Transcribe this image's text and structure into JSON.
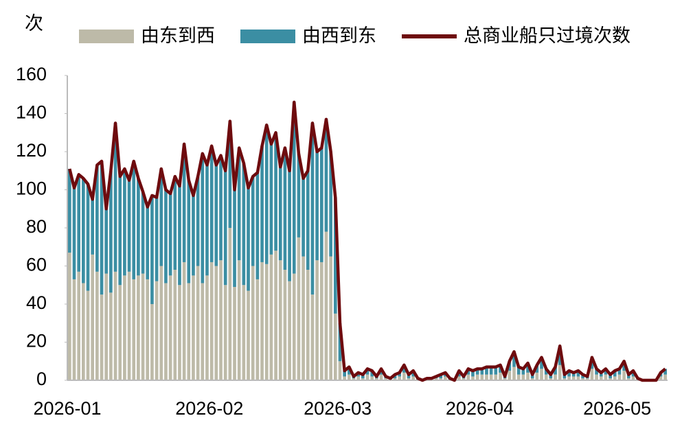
{
  "chart_data": {
    "type": "bar",
    "stacked": true,
    "y_label": "次",
    "categories": [
      "2026-01",
      null,
      null,
      null,
      null,
      null,
      null,
      null,
      null,
      null,
      null,
      null,
      null,
      null,
      null,
      null,
      null,
      null,
      null,
      null,
      null,
      null,
      null,
      null,
      null,
      null,
      null,
      null,
      null,
      null,
      null,
      "2026-02",
      null,
      null,
      null,
      null,
      null,
      null,
      null,
      null,
      null,
      null,
      null,
      null,
      null,
      null,
      null,
      null,
      null,
      null,
      null,
      null,
      null,
      null,
      null,
      null,
      null,
      null,
      null,
      "2026-03",
      null,
      null,
      null,
      null,
      null,
      null,
      null,
      null,
      null,
      null,
      null,
      null,
      null,
      null,
      null,
      null,
      null,
      null,
      null,
      null,
      null,
      null,
      null,
      null,
      null,
      null,
      null,
      null,
      null,
      null,
      "2026-04",
      null,
      null,
      null,
      null,
      null,
      null,
      null,
      null,
      null,
      null,
      null,
      null,
      null,
      null,
      null,
      null,
      null,
      null,
      null,
      null,
      null,
      null,
      null,
      null,
      null,
      null,
      null,
      null,
      null,
      "2026-05",
      null,
      null,
      null,
      null,
      null,
      null,
      null,
      null,
      null,
      null
    ],
    "series": [
      {
        "name": "由东到西",
        "color": "#bdbaa8",
        "values": [
          67,
          53,
          57,
          51,
          47,
          66,
          57,
          45,
          56,
          46,
          57,
          50,
          55,
          57,
          53,
          55,
          56,
          53,
          40,
          52,
          60,
          51,
          55,
          58,
          50,
          62,
          51,
          55,
          60,
          51,
          55,
          62,
          60,
          63,
          50,
          80,
          49,
          63,
          50,
          47,
          60,
          53,
          62,
          61,
          66,
          68,
          63,
          58,
          52,
          56,
          75,
          65,
          58,
          45,
          63,
          62,
          78,
          65,
          35,
          10,
          2,
          3,
          1,
          2,
          1,
          3,
          2,
          1,
          3,
          1,
          0,
          1,
          2,
          4,
          1,
          2,
          0,
          0,
          0,
          1,
          1,
          1,
          2,
          0,
          0,
          2,
          1,
          3,
          2,
          3,
          3,
          3,
          3,
          3,
          4,
          1,
          5,
          7,
          3,
          3,
          4,
          1,
          4,
          6,
          3,
          1,
          3,
          8,
          1,
          2,
          2,
          2,
          1,
          1,
          6,
          3,
          2,
          3,
          1,
          2,
          3,
          5,
          1,
          2,
          0,
          0,
          0,
          0,
          0,
          2,
          3
        ]
      },
      {
        "name": "由西到东",
        "color": "#3b8ea3",
        "values": [
          44,
          48,
          51,
          55,
          56,
          29,
          56,
          70,
          34,
          64,
          78,
          57,
          56,
          48,
          62,
          51,
          43,
          38,
          57,
          44,
          51,
          49,
          43,
          49,
          52,
          62,
          54,
          42,
          47,
          68,
          58,
          61,
          53,
          55,
          60,
          56,
          51,
          59,
          64,
          54,
          47,
          56,
          61,
          73,
          58,
          62,
          49,
          64,
          58,
          90,
          44,
          41,
          52,
          90,
          57,
          60,
          59,
          55,
          61,
          20,
          3,
          4,
          1,
          2,
          2,
          3,
          3,
          1,
          3,
          1,
          1,
          2,
          2,
          4,
          2,
          3,
          1,
          0,
          1,
          0,
          1,
          2,
          2,
          1,
          0,
          3,
          1,
          3,
          3,
          3,
          3,
          4,
          4,
          4,
          4,
          1,
          5,
          8,
          4,
          3,
          5,
          2,
          4,
          6,
          3,
          2,
          4,
          10,
          2,
          3,
          2,
          3,
          2,
          1,
          6,
          3,
          2,
          3,
          2,
          3,
          3,
          5,
          2,
          3,
          1,
          0,
          0,
          0,
          0,
          2,
          3
        ]
      },
      {
        "name": "总商业船只过境次数",
        "type": "line",
        "color": "#6e0b0e",
        "values": [
          111,
          101,
          108,
          106,
          103,
          95,
          113,
          115,
          90,
          110,
          135,
          107,
          111,
          105,
          115,
          106,
          99,
          91,
          97,
          96,
          111,
          100,
          98,
          107,
          102,
          124,
          105,
          97,
          107,
          119,
          113,
          123,
          113,
          118,
          110,
          136,
          100,
          122,
          114,
          101,
          107,
          109,
          123,
          134,
          124,
          130,
          112,
          122,
          110,
          146,
          119,
          106,
          110,
          135,
          120,
          122,
          137,
          120,
          96,
          30,
          5,
          7,
          2,
          4,
          3,
          6,
          5,
          2,
          6,
          2,
          1,
          3,
          4,
          8,
          3,
          5,
          1,
          0,
          1,
          1,
          2,
          3,
          4,
          1,
          0,
          5,
          2,
          6,
          5,
          6,
          6,
          7,
          7,
          7,
          8,
          2,
          10,
          15,
          7,
          6,
          9,
          3,
          8,
          12,
          6,
          3,
          7,
          18,
          3,
          5,
          4,
          5,
          3,
          2,
          12,
          6,
          4,
          6,
          3,
          5,
          6,
          10,
          3,
          5,
          1,
          0,
          0,
          0,
          0,
          4,
          6
        ]
      }
    ],
    "ylim": [
      0,
      160
    ],
    "yticks": [
      0,
      20,
      40,
      60,
      80,
      100,
      120,
      140,
      160
    ],
    "grid": false
  }
}
